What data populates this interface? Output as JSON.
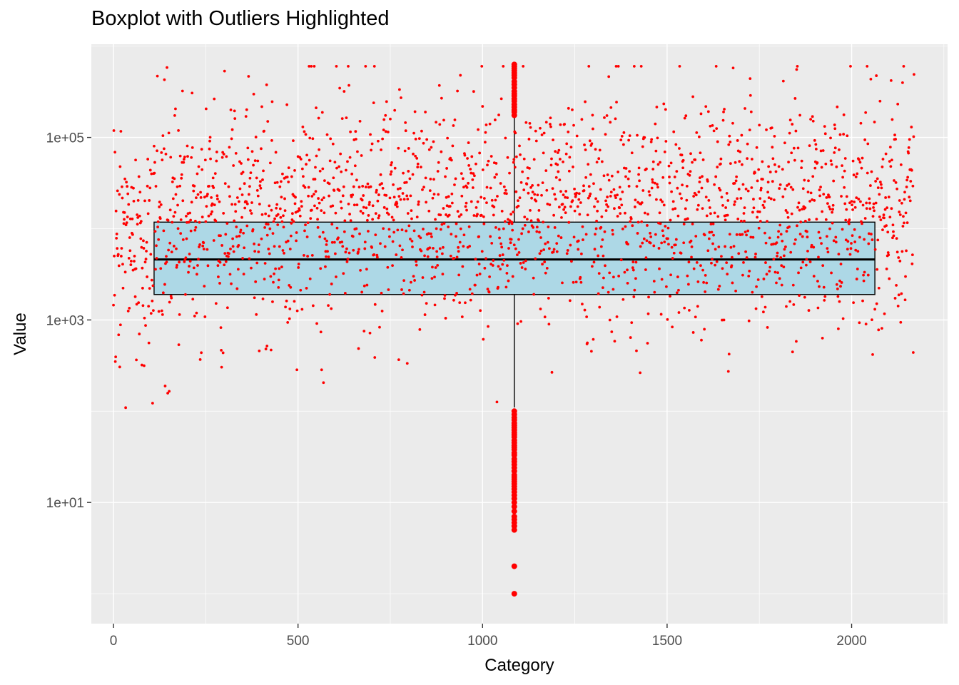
{
  "chart_data": {
    "type": "boxplot",
    "title": "Boxplot with Outliers Highlighted",
    "xlabel": "Category",
    "ylabel": "Value",
    "x_ticks": [
      0,
      500,
      1000,
      1500,
      2000
    ],
    "y_tick_values": [
      10,
      1000,
      100000
    ],
    "y_tick_labels": [
      "1e+01",
      "1e+03",
      "1e+05"
    ],
    "y_scale": "log10",
    "xlim": [
      -60,
      2260
    ],
    "ylim": [
      0.47,
      1050000
    ],
    "grid": true,
    "box": {
      "x_min": 110,
      "x_max": 2063,
      "x_center": 1086,
      "q1": 1900,
      "median": 4600,
      "q3": 11800,
      "whisker_low": 110,
      "whisker_high": 170000
    },
    "outliers_x": 1086,
    "outliers_high": [
      175000,
      190000,
      200000,
      215000,
      230000,
      250000,
      265000,
      285000,
      300000,
      320000,
      350000,
      380000,
      410000,
      450000,
      480000,
      510000,
      540000,
      570000,
      600000,
      630000
    ],
    "outliers_low": [
      100,
      92,
      85,
      80,
      74,
      70,
      66,
      62,
      58,
      55,
      52,
      48,
      45,
      42,
      40,
      38,
      35,
      33,
      30,
      28,
      26,
      24,
      22,
      20,
      19,
      18,
      17,
      16,
      15,
      14,
      13,
      12,
      11,
      10,
      9,
      8,
      7,
      6.5,
      6,
      5.5,
      5,
      2,
      1
    ],
    "point_count": 2170,
    "colors": {
      "panel": "#ebebeb",
      "grid": "#ffffff",
      "box_fill": "#add8e6",
      "box_stroke": "#000000",
      "points": "#ff0000"
    }
  }
}
